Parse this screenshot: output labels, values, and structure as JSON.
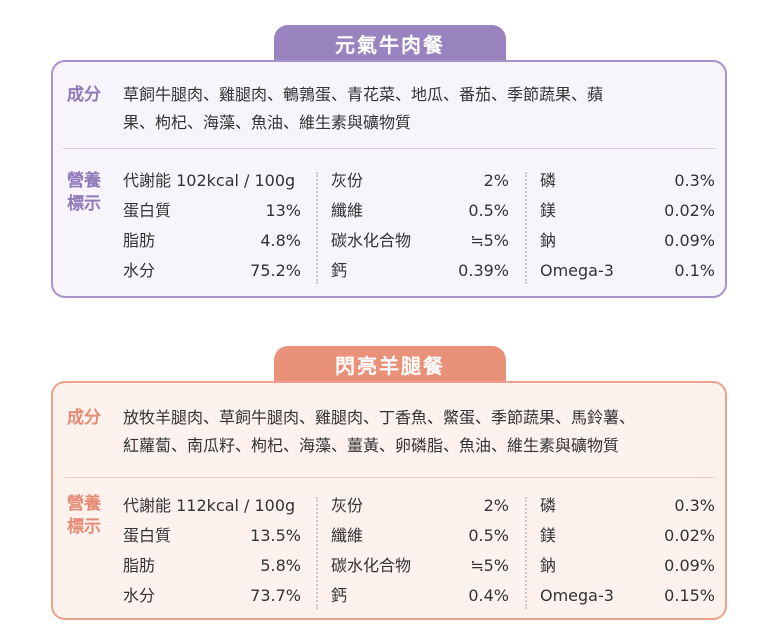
{
  "cards": [
    {
      "title": "元氣牛肉餐",
      "ingredients_label": "成分",
      "ingredients_line1": "草飼牛腿肉、雞腿肉、鵪鶉蛋、青花菜、地瓜、番茄、季節蔬果、蘋",
      "ingredients_line2": "果、枸杞、海藻、魚油、維生素與礦物質",
      "nutrition_label_1": "營養",
      "nutrition_label_2": "標示",
      "nutrition": {
        "col1": [
          {
            "name": "代謝能 102kcal / 100g",
            "value": ""
          },
          {
            "name": "蛋白質",
            "value": "13%"
          },
          {
            "name": "脂肪",
            "value": "4.8%"
          },
          {
            "name": "水分",
            "value": "75.2%"
          }
        ],
        "col2": [
          {
            "name": "灰份",
            "value": "2%"
          },
          {
            "name": "纖維",
            "value": "0.5%"
          },
          {
            "name": "碳水化合物",
            "value": "≒5%"
          },
          {
            "name": "鈣",
            "value": "0.39%"
          }
        ],
        "col3": [
          {
            "name": "磷",
            "value": "0.3%"
          },
          {
            "name": "鎂",
            "value": "0.02%"
          },
          {
            "name": "鈉",
            "value": "0.09%"
          },
          {
            "name": "Omega-3",
            "value": "0.1%"
          }
        ]
      }
    },
    {
      "title": "閃亮羊腿餐",
      "ingredients_label": "成分",
      "ingredients_line1": "放牧羊腿肉、草飼牛腿肉、雞腿肉、丁香魚、鱉蛋、季節蔬果、馬鈴薯、",
      "ingredients_line2": "紅蘿蔔、南瓜籽、枸杞、海藻、薑黃、卵磷脂、魚油、維生素與礦物質",
      "nutrition_label_1": "營養",
      "nutrition_label_2": "標示",
      "nutrition": {
        "col1": [
          {
            "name": "代謝能 112kcal / 100g",
            "value": ""
          },
          {
            "name": "蛋白質",
            "value": "13.5%"
          },
          {
            "name": "脂肪",
            "value": "5.8%"
          },
          {
            "name": "水分",
            "value": "73.7%"
          }
        ],
        "col2": [
          {
            "name": "灰份",
            "value": "2%"
          },
          {
            "name": "纖維",
            "value": "0.5%"
          },
          {
            "name": "碳水化合物",
            "value": "≒5%"
          },
          {
            "name": "鈣",
            "value": "0.4%"
          }
        ],
        "col3": [
          {
            "name": "磷",
            "value": "0.3%"
          },
          {
            "name": "鎂",
            "value": "0.02%"
          },
          {
            "name": "鈉",
            "value": "0.09%"
          },
          {
            "name": "Omega-3",
            "value": "0.15%"
          }
        ]
      }
    }
  ],
  "theme_colors": {
    "purple": "#9a84bf",
    "salmon": "#ea917a"
  }
}
